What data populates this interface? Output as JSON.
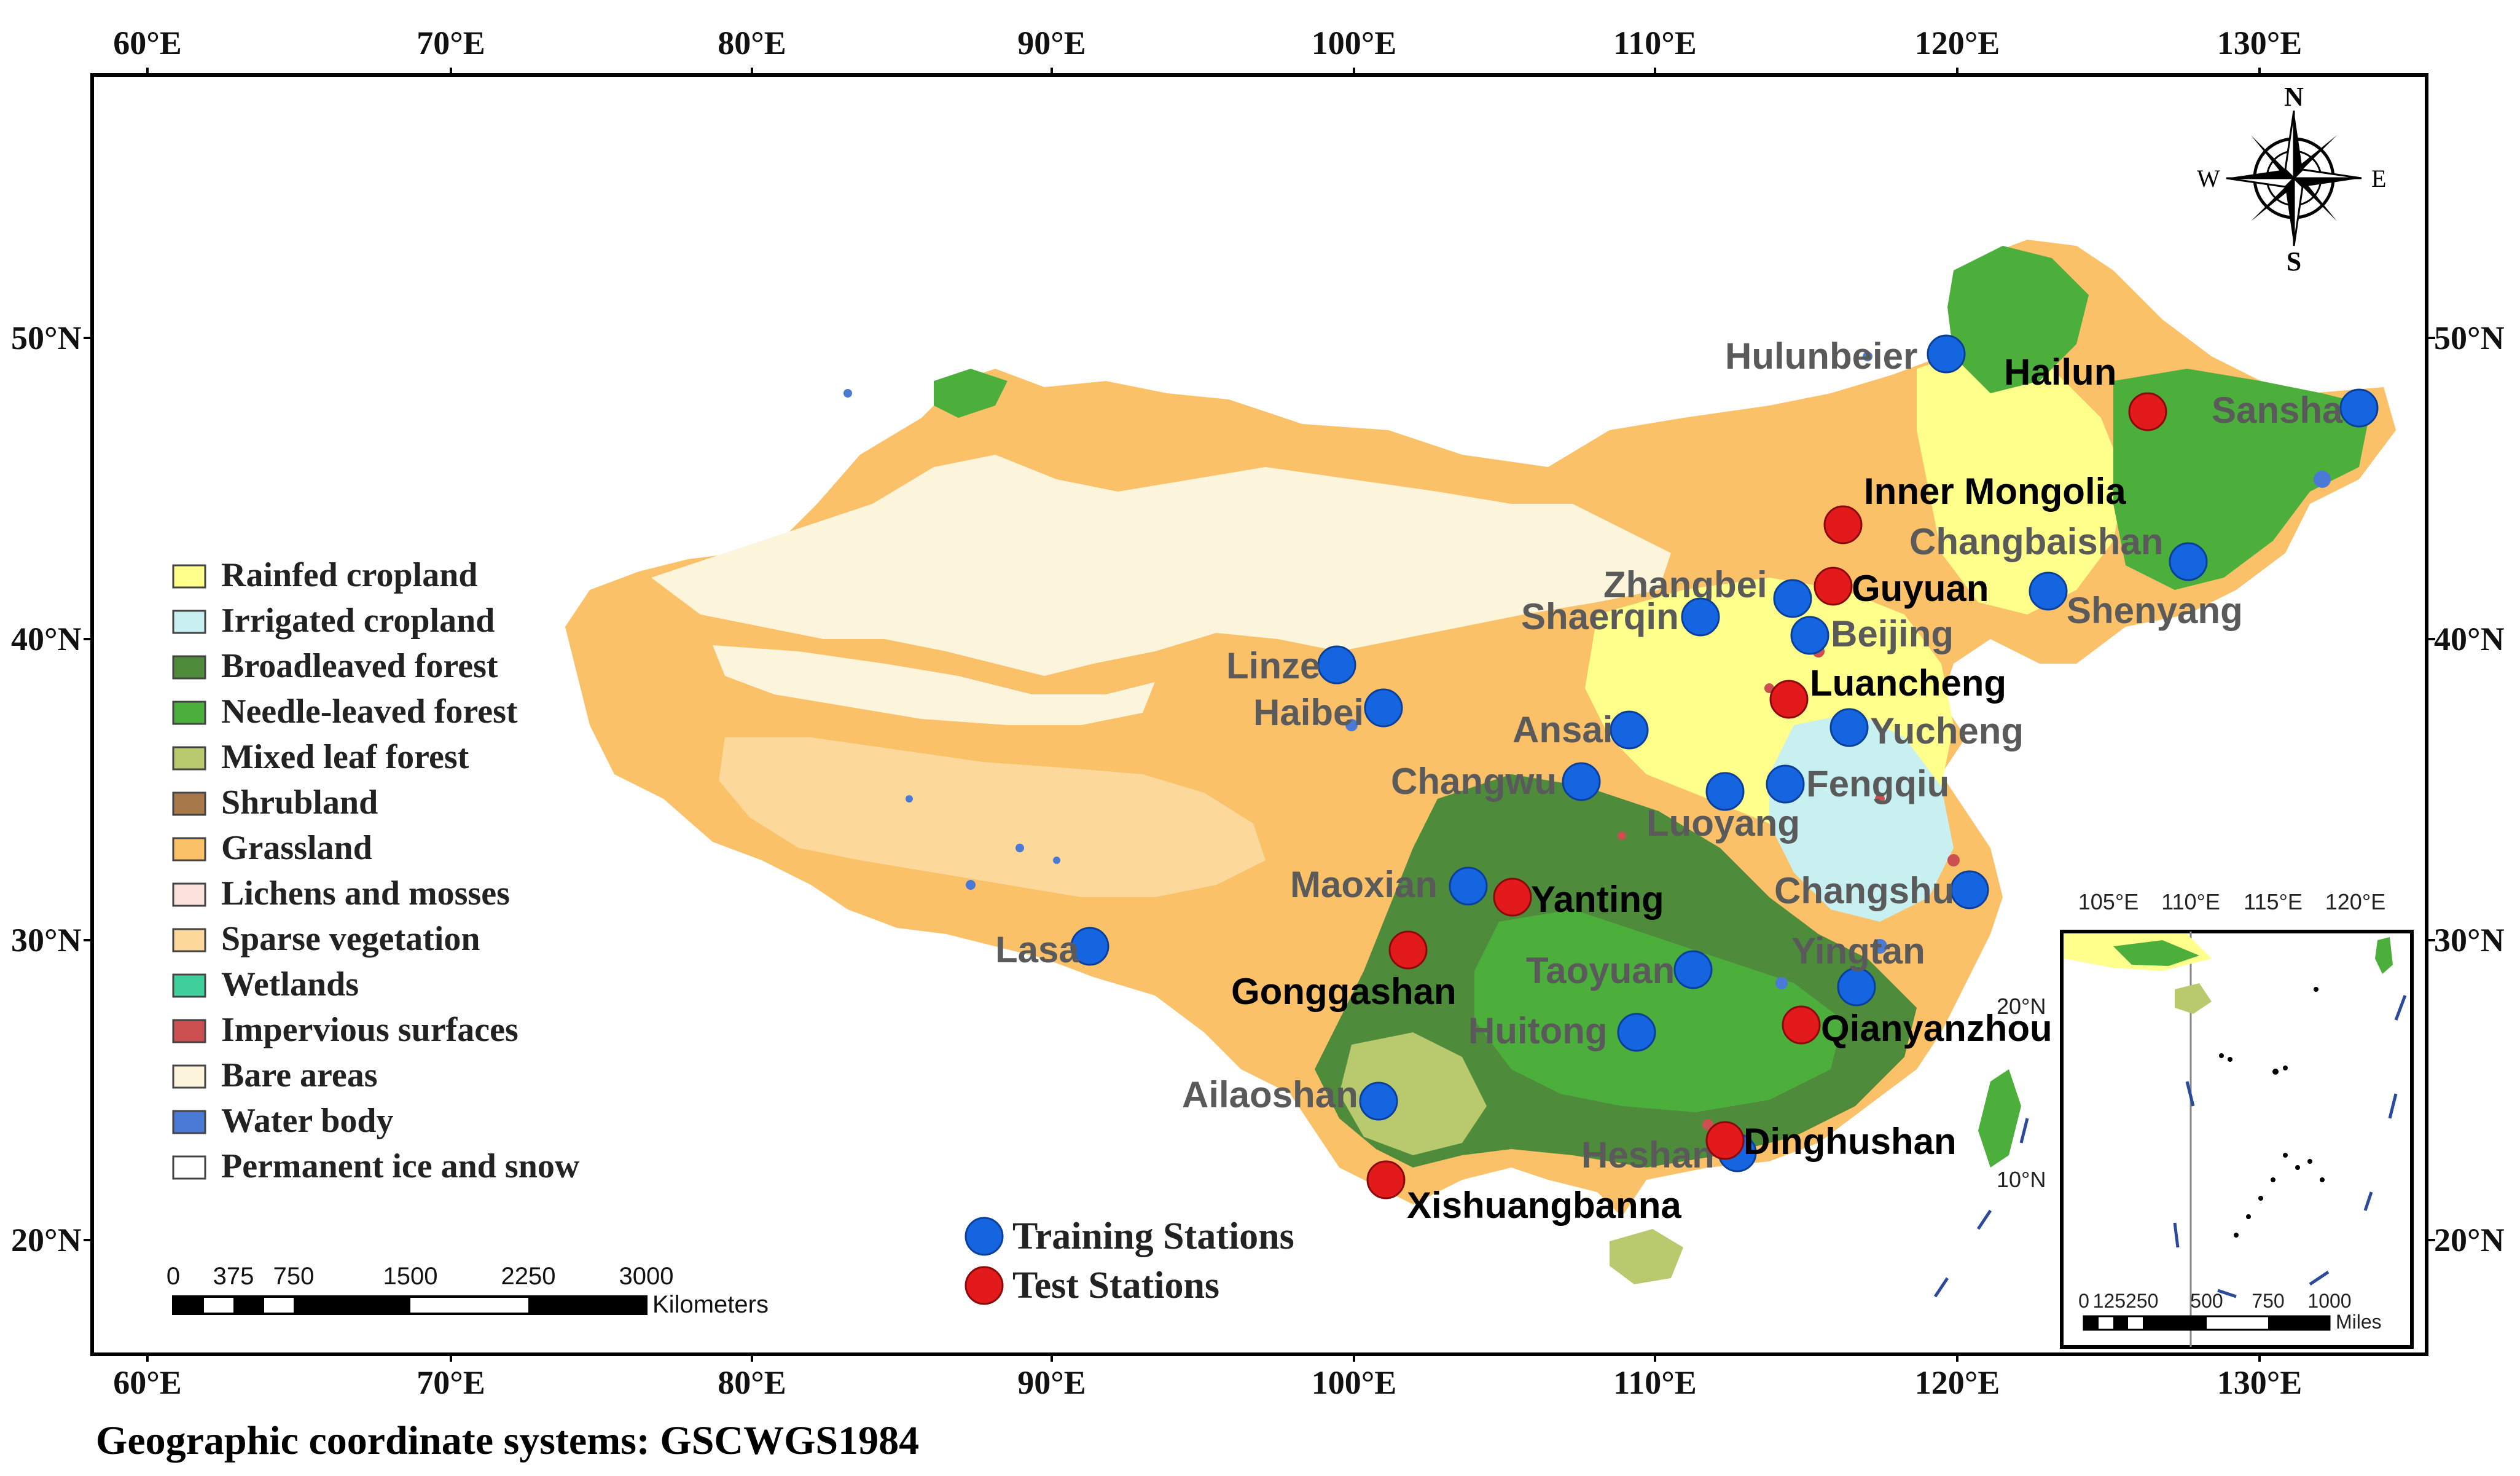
{
  "map": {
    "top_lon_ticks": [
      "60°E",
      "70°E",
      "80°E",
      "90°E",
      "100°E",
      "110°E",
      "120°E",
      "130°E"
    ],
    "bottom_lon_ticks": [
      "60°E",
      "70°E",
      "80°E",
      "90°E",
      "100°E",
      "110°E",
      "120°E",
      "130°E"
    ],
    "lat_ticks": [
      "50°N",
      "40°N",
      "30°N",
      "20°N"
    ],
    "inset_lon_ticks": [
      "105°E",
      "110°E",
      "115°E",
      "120°E"
    ],
    "inset_lat_ticks": [
      "20°N",
      "10°N"
    ],
    "compass": {
      "n": "N",
      "s": "S",
      "e": "E",
      "w": "W"
    },
    "footer": "Geographic coordinate systems: GSCWGS1984"
  },
  "legend": {
    "items": [
      {
        "label": "Rainfed cropland",
        "color": "#ffff8c"
      },
      {
        "label": "Irrigated cropland",
        "color": "#c8f0f0"
      },
      {
        "label": "Broadleaved forest",
        "color": "#4e8c3c"
      },
      {
        "label": "Needle-leaved forest",
        "color": "#4caf3c"
      },
      {
        "label": "Mixed leaf forest",
        "color": "#b9c96e"
      },
      {
        "label": "Shrubland",
        "color": "#a8794a"
      },
      {
        "label": "Grassland",
        "color": "#fac169"
      },
      {
        "label": "Lichens and mosses",
        "color": "#fde2dc"
      },
      {
        "label": "Sparse vegetation",
        "color": "#fcd99a"
      },
      {
        "label": "Wetlands",
        "color": "#3fcf9a"
      },
      {
        "label": "Impervious surfaces",
        "color": "#cc5050"
      },
      {
        "label": "Bare areas",
        "color": "#fdf4dc"
      },
      {
        "label": "Water body",
        "color": "#4a7ad6"
      },
      {
        "label": "Permanent ice and snow",
        "color": "#ffffff"
      }
    ]
  },
  "station_legend": {
    "training": "Training Stations",
    "test": "Test Stations",
    "training_color": "#1565e0",
    "test_color": "#e31a1c"
  },
  "stations": [
    {
      "name": "Hulunbeier",
      "type": "training"
    },
    {
      "name": "Hailun",
      "type": "test"
    },
    {
      "name": "Sansha",
      "type": "training"
    },
    {
      "name": "Inner Mongolia",
      "type": "test"
    },
    {
      "name": "Changbaishan",
      "type": "training"
    },
    {
      "name": "Zhangbei",
      "type": "training"
    },
    {
      "name": "Guyuan",
      "type": "test"
    },
    {
      "name": "Shenyang",
      "type": "training"
    },
    {
      "name": "Shaerqin",
      "type": "training"
    },
    {
      "name": "Beijing",
      "type": "training"
    },
    {
      "name": "Linze",
      "type": "training"
    },
    {
      "name": "Luancheng",
      "type": "test"
    },
    {
      "name": "Haibei",
      "type": "training"
    },
    {
      "name": "Ansai",
      "type": "training"
    },
    {
      "name": "Yucheng",
      "type": "training"
    },
    {
      "name": "Changwu",
      "type": "training"
    },
    {
      "name": "Fengqiu",
      "type": "training"
    },
    {
      "name": "Luoyang",
      "type": "training"
    },
    {
      "name": "Maoxian",
      "type": "training"
    },
    {
      "name": "Yanting",
      "type": "test"
    },
    {
      "name": "Changshu",
      "type": "training"
    },
    {
      "name": "Lasa",
      "type": "training"
    },
    {
      "name": "Gonggashan",
      "type": "test"
    },
    {
      "name": "Yingtan",
      "type": "training"
    },
    {
      "name": "Taoyuan",
      "type": "training"
    },
    {
      "name": "Huitong",
      "type": "training"
    },
    {
      "name": "Qianyanzhou",
      "type": "test"
    },
    {
      "name": "Ailaoshan",
      "type": "training"
    },
    {
      "name": "Heshan",
      "type": "training"
    },
    {
      "name": "Dinghushan",
      "type": "test"
    },
    {
      "name": "Xishuangbanna",
      "type": "test"
    }
  ],
  "scalebar": {
    "ticks": [
      "0",
      "375",
      "750",
      "1500",
      "2250",
      "3000"
    ],
    "unit": "Kilometers"
  },
  "inset_scalebar": {
    "ticks": [
      "0",
      "125250",
      "500",
      "750",
      "1000"
    ],
    "unit": "Miles"
  }
}
